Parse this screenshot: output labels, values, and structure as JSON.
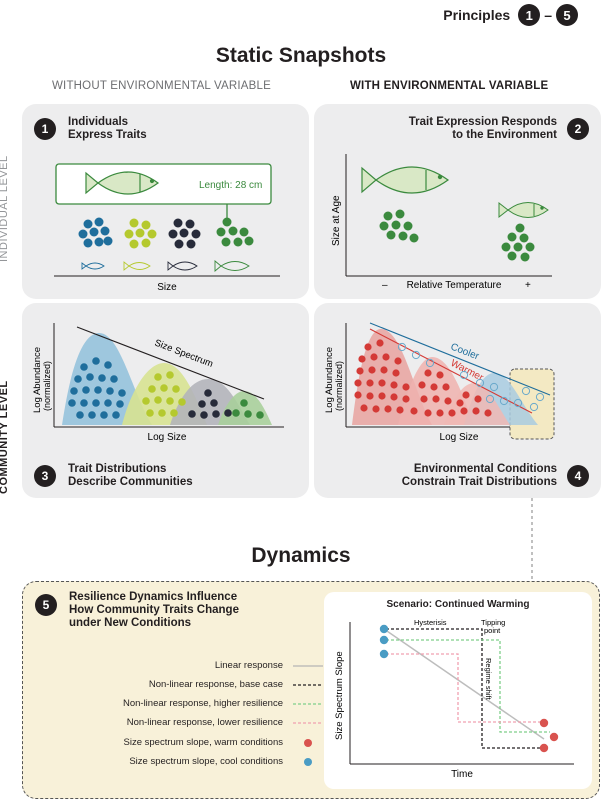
{
  "header": {
    "principles_label": "Principles",
    "num_start": "1",
    "dash": "–",
    "num_end": "5"
  },
  "static": {
    "title": "Static Snapshots",
    "col_left": "WITHOUT ENVIRONMENTAL VARIABLE",
    "col_right": "WITH ENVIRONMENTAL VARIABLE",
    "row_top": "INDIVIDUAL LEVEL",
    "row_bottom": "COMMUNITY LEVEL"
  },
  "panel1": {
    "num": "1",
    "title_l1": "Individuals",
    "title_l2": "Express Traits",
    "length_label": "Length: 28 cm",
    "x_axis": "Size"
  },
  "panel2": {
    "num": "2",
    "title_l1": "Trait Expression Responds",
    "title_l2": "to the Environment",
    "y_axis": "Size at Age",
    "x_axis": "Relative Temperature",
    "minus": "–",
    "plus": "+"
  },
  "panel3": {
    "num": "3",
    "title_l1": "Trait Distributions",
    "title_l2": "Describe Communities",
    "y_axis_l1": "Log Abundance",
    "y_axis_l2": "(normalized)",
    "x_axis": "Log Size",
    "spectrum_label": "Size Spectrum"
  },
  "panel4": {
    "num": "4",
    "title_l1": "Environmental Conditions",
    "title_l2": "Constrain Trait Distributions",
    "y_axis_l1": "Log Abundance",
    "y_axis_l2": "(normalized)",
    "x_axis": "Log Size",
    "cooler": "Cooler",
    "warmer": "Warmer"
  },
  "dynamics": {
    "title": "Dynamics",
    "num": "5",
    "title_l1": "Resilience Dynamics Influence",
    "title_l2": "How Community Traits Change",
    "title_l3": "under New Conditions",
    "legend": [
      {
        "label": "Linear response",
        "color": "#b5b5b5",
        "style": "solid"
      },
      {
        "label": "Non-linear response, base case",
        "color": "#231f20",
        "style": "dash"
      },
      {
        "label": "Non-linear response, higher resilience",
        "color": "#7fcf8a",
        "style": "dash"
      },
      {
        "label": "Non-linear response, lower resilience",
        "color": "#f0a0b0",
        "style": "dash"
      },
      {
        "label": "Size spectrum slope, warm conditions",
        "color": "#d9534f",
        "style": "dot"
      },
      {
        "label": "Size spectrum slope, cool conditions",
        "color": "#4a9cc4",
        "style": "dot"
      }
    ],
    "scenario_title": "Scenario: Continued Warming",
    "hysteresis": "Hysterisis",
    "tipping_l1": "Tipping",
    "tipping_l2": "point",
    "regime_shift": "Regime shift",
    "y_axis": "Size Spectrum Slope",
    "x_axis": "Time"
  },
  "colors": {
    "panel_bg": "#ededee",
    "dyn_bg": "#f8f1d9",
    "blue": "#1f6e9c",
    "lime": "#b5c92e",
    "navy": "#272b3a",
    "green": "#3b8a3e",
    "red": "#d43a36",
    "lightblue": "#8fc0da"
  }
}
